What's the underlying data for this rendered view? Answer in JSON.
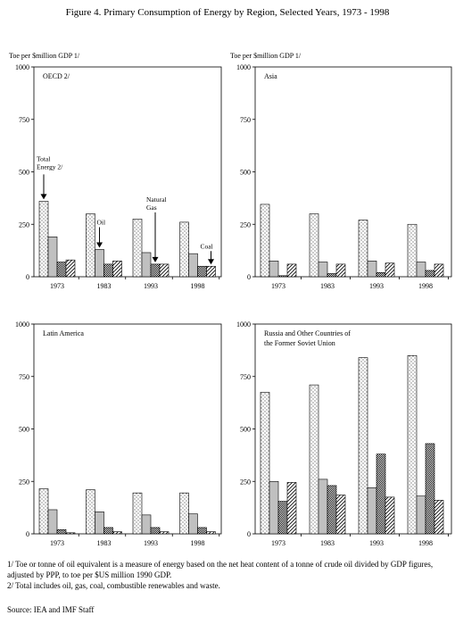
{
  "figure_title": "Figure 4. Primary Consumption of Energy by Region, Selected Years, 1973 - 1998",
  "footnotes": [
    "1/ Toe or tonne of oil equivalent is a measure of energy based on the net heat content of a tonne of crude oil divided by GDP figures, adjusted by PPP, to toe per $US million 1990 GDP.",
    "2/ Total includes oil, gas, coal, combustible renewables and waste."
  ],
  "source": "Source: IEA and IMF Staff",
  "series_colors": {
    "Total": "#ffffff",
    "Oil": "#c0c0c0",
    "Natural Gas": "#ffffff",
    "Coal": "#ffffff"
  },
  "chart_data": [
    {
      "type": "bar",
      "title": "OECD 2/",
      "ylabel": "Toe per $million GDP 1/",
      "ylim": [
        0,
        1000
      ],
      "yticks": [
        0,
        250,
        500,
        750,
        1000
      ],
      "categories": [
        "1973",
        "1983",
        "1993",
        "1998"
      ],
      "series": [
        {
          "name": "Total",
          "values": [
            360,
            300,
            275,
            260
          ]
        },
        {
          "name": "Oil",
          "values": [
            190,
            130,
            115,
            110
          ]
        },
        {
          "name": "Natural Gas",
          "values": [
            70,
            60,
            60,
            50
          ]
        },
        {
          "name": "Coal",
          "values": [
            80,
            75,
            60,
            50
          ]
        }
      ],
      "annotations": [
        {
          "text": "Total Energy 2/",
          "category": "1973",
          "series": "Total"
        },
        {
          "text": "Oil",
          "category": "1983",
          "series": "Oil"
        },
        {
          "text": "Natural Gas",
          "category": "1993",
          "series": "Natural Gas"
        },
        {
          "text": "Coal",
          "category": "1998",
          "series": "Coal"
        }
      ],
      "grid": false
    },
    {
      "type": "bar",
      "title": "Asia",
      "ylabel": "Toe per $million GDP 1/",
      "ylim": [
        0,
        1000
      ],
      "yticks": [
        0,
        250,
        500,
        750,
        1000
      ],
      "categories": [
        "1973",
        "1983",
        "1993",
        "1998"
      ],
      "series": [
        {
          "name": "Total",
          "values": [
            345,
            300,
            270,
            250
          ]
        },
        {
          "name": "Oil",
          "values": [
            75,
            70,
            75,
            70
          ]
        },
        {
          "name": "Natural Gas",
          "values": [
            5,
            15,
            20,
            30
          ]
        },
        {
          "name": "Coal",
          "values": [
            60,
            60,
            65,
            60
          ]
        }
      ],
      "grid": false
    },
    {
      "type": "bar",
      "title": "Latin America",
      "ylabel": "",
      "ylim": [
        0,
        1000
      ],
      "yticks": [
        0,
        250,
        500,
        750,
        1000
      ],
      "categories": [
        "1973",
        "1983",
        "1993",
        "1998"
      ],
      "series": [
        {
          "name": "Total",
          "values": [
            215,
            210,
            195,
            195
          ]
        },
        {
          "name": "Oil",
          "values": [
            115,
            105,
            90,
            95
          ]
        },
        {
          "name": "Natural Gas",
          "values": [
            20,
            30,
            30,
            30
          ]
        },
        {
          "name": "Coal",
          "values": [
            5,
            10,
            10,
            10
          ]
        }
      ],
      "grid": false
    },
    {
      "type": "bar",
      "title": "Russia and Other Countries of the Former Soviet Union",
      "ylabel": "",
      "ylim": [
        0,
        1000
      ],
      "yticks": [
        0,
        250,
        500,
        750,
        1000
      ],
      "categories": [
        "1973",
        "1983",
        "1993",
        "1998"
      ],
      "series": [
        {
          "name": "Total",
          "values": [
            675,
            710,
            840,
            850
          ]
        },
        {
          "name": "Oil",
          "values": [
            250,
            260,
            220,
            180
          ]
        },
        {
          "name": "Natural Gas",
          "values": [
            155,
            230,
            380,
            430
          ]
        },
        {
          "name": "Coal",
          "values": [
            245,
            185,
            175,
            160
          ]
        }
      ],
      "grid": false
    }
  ]
}
